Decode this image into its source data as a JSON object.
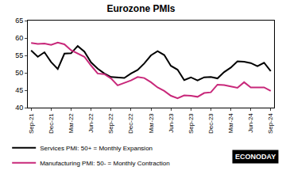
{
  "chart_data": {
    "type": "line",
    "title": "Eurozone PMIs",
    "categories": [
      "Sep-21",
      null,
      null,
      "Dec-21",
      null,
      null,
      "Mar-22",
      null,
      null,
      "Jun-22",
      null,
      null,
      "Sep-22",
      null,
      null,
      "Dec-22",
      null,
      null,
      "Mar-23",
      null,
      null,
      "Jun-23",
      null,
      null,
      "Sep-23",
      null,
      null,
      "Dec-23",
      null,
      null,
      "Mar-24",
      null,
      null,
      "Jun-24",
      null,
      null,
      "Sep-24"
    ],
    "series": [
      {
        "name": "Services PMI: 50+ = Monthly Expansion",
        "color": "#000000",
        "values": [
          56.4,
          54.6,
          55.9,
          53.1,
          51.1,
          55.5,
          55.6,
          57.7,
          56.1,
          53.0,
          51.2,
          49.8,
          48.8,
          48.6,
          48.5,
          49.8,
          50.8,
          52.7,
          55.0,
          56.2,
          55.1,
          52.0,
          50.9,
          47.9,
          48.7,
          47.8,
          48.7,
          48.8,
          48.4,
          50.2,
          51.5,
          53.3,
          53.2,
          52.8,
          51.9,
          52.9,
          50.5
        ]
      },
      {
        "name": "Manufacturing PMI: 50- = Monthly Contraction",
        "color": "#c8287a",
        "values": [
          58.6,
          58.3,
          58.4,
          58.0,
          58.7,
          58.2,
          56.5,
          55.5,
          54.6,
          52.1,
          49.8,
          49.6,
          48.4,
          46.4,
          47.1,
          47.8,
          48.8,
          48.5,
          47.3,
          45.8,
          44.8,
          43.4,
          42.7,
          43.5,
          43.4,
          43.1,
          44.2,
          44.4,
          46.6,
          46.5,
          46.1,
          45.7,
          47.3,
          45.8,
          45.8,
          45.8,
          44.8
        ]
      }
    ],
    "ylim": [
      40,
      65
    ],
    "yticks": [
      40,
      45,
      50,
      55,
      60,
      65
    ],
    "grid": false,
    "legend": "bottom left",
    "annotations": [
      "ECONODAY"
    ]
  }
}
